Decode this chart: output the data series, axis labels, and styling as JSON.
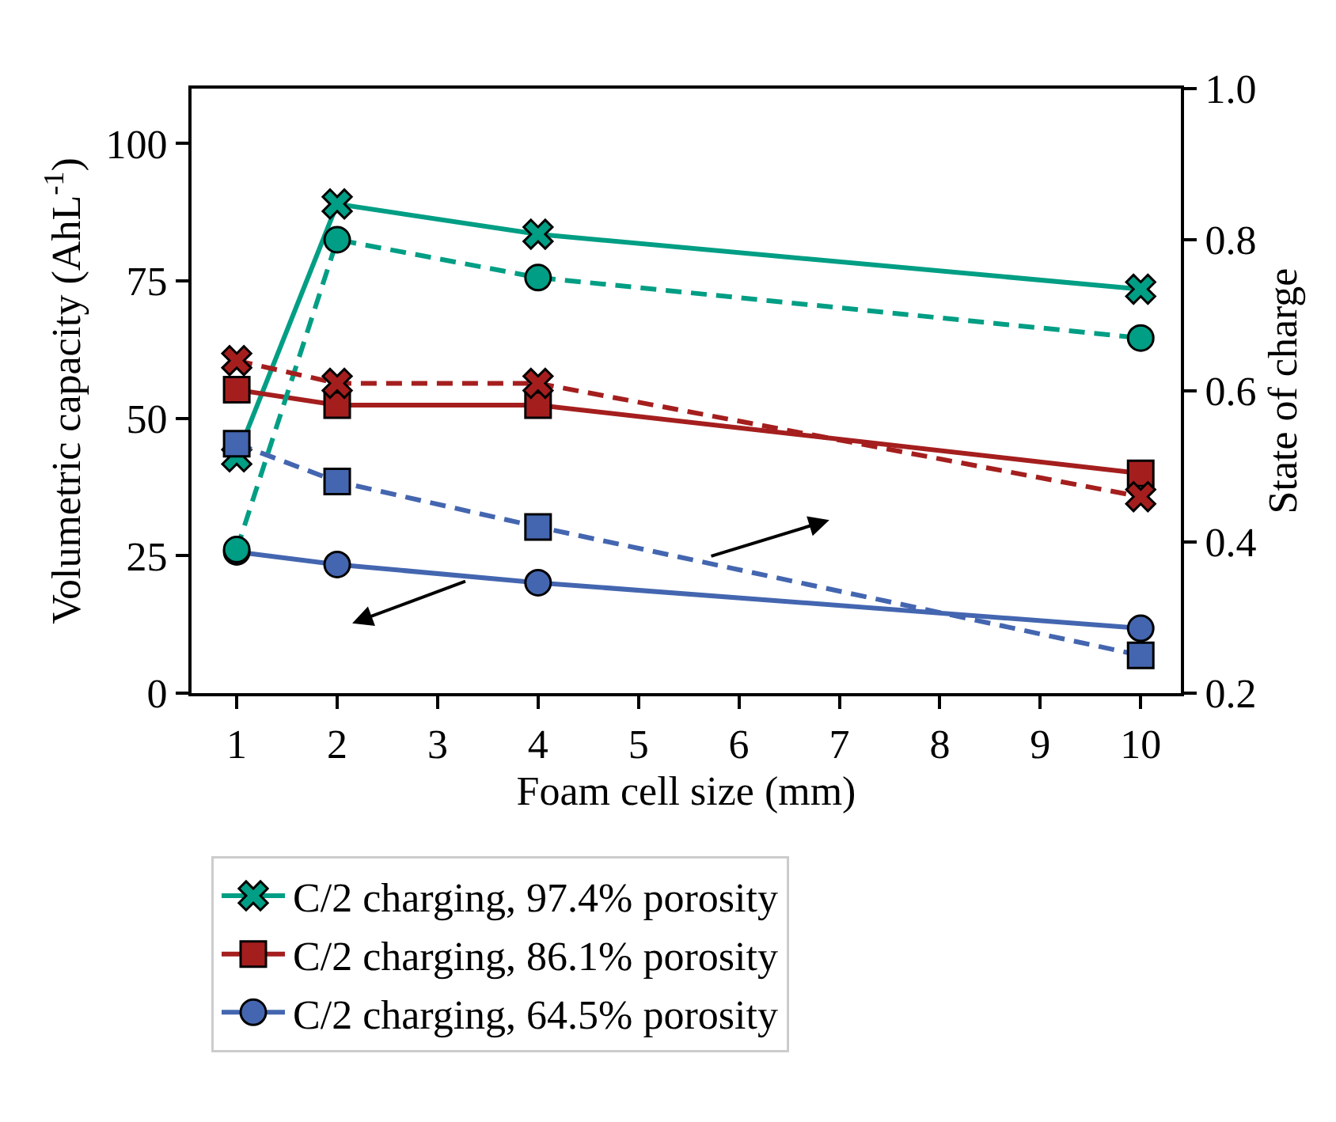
{
  "chart_data": {
    "type": "line",
    "xlabel": "Foam cell size (mm)",
    "ylabel": "Volumetric capacity (AhL$^{-1}$)",
    "y2label": "State of charge",
    "x": [
      1,
      2,
      4,
      10
    ],
    "xlim": [
      0.55,
      10.4
    ],
    "xticks": [
      1,
      2,
      3,
      4,
      5,
      6,
      7,
      8,
      9,
      10
    ],
    "ylim": [
      0,
      110
    ],
    "yticks": [
      0,
      25,
      50,
      75,
      100
    ],
    "y2lim": [
      0.2,
      1.0
    ],
    "y2ticks": [
      0.2,
      0.4,
      0.6,
      0.8,
      {
        "value": 1.0,
        "label": "1.0"
      }
    ],
    "legend": "bottom",
    "series": [
      {
        "name": "C/2 charging, 97.4% porosity",
        "color": "#009e84",
        "marker": "cross",
        "line_style": "solid",
        "values": [
          43,
          89,
          83.5,
          73.5
        ]
      },
      {
        "name": "C/2 charging, 86.1% porosity",
        "color": "#a51e1e",
        "marker": "square",
        "line_style": "solid",
        "values": [
          55.2,
          52.4,
          52.4,
          40
        ]
      },
      {
        "name": "C/2 charging, 64.5% porosity",
        "color": "#4466b0",
        "marker": "circle",
        "line_style": "solid",
        "values": [
          25.7,
          23.4,
          20.1,
          11.8
        ]
      },
      {
        "color": "#009e84",
        "marker": "circle",
        "line_style": "dashed",
        "axis": "y2",
        "values": [
          0.39,
          0.8,
          0.75,
          0.67
        ]
      },
      {
        "color": "#a51e1e",
        "marker": "cross",
        "line_style": "dashed",
        "axis": "y2",
        "values": [
          0.64,
          0.61,
          0.61,
          0.46
        ]
      },
      {
        "color": "#4466b0",
        "marker": "square",
        "line_style": "dashed",
        "axis": "y2",
        "values": [
          0.53,
          0.48,
          0.42,
          0.25
        ]
      }
    ]
  }
}
